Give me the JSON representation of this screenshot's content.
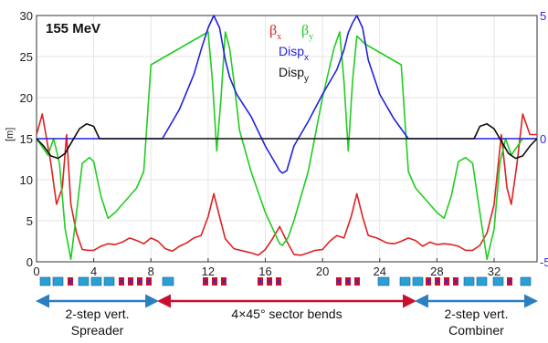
{
  "chart_data": {
    "type": "line",
    "title": "155 MeV",
    "ylabel": "[m]",
    "xlim": [
      0,
      35
    ],
    "ylim": [
      0,
      30
    ],
    "x_ticks": [
      "0",
      "4",
      "8",
      "12",
      "16",
      "20",
      "24",
      "28",
      "32"
    ],
    "y_ticks": [
      "0",
      "5",
      "10",
      "15",
      "20",
      "25",
      "30"
    ],
    "right_axis": {
      "ylim": [
        -5,
        5
      ],
      "ticks": [
        "-5",
        "0",
        "5"
      ],
      "color": "#2a2ae0"
    },
    "legend": {
      "beta_x": {
        "sym": "β",
        "sub": "x",
        "color": "#dd2222"
      },
      "beta_y": {
        "sym": "β",
        "sub": "y",
        "color": "#22cc22"
      },
      "disp_x": {
        "base": "Disp",
        "sub": "x",
        "color": "#2222dd"
      },
      "disp_y": {
        "base": "Disp",
        "sub": "y",
        "color": "#111111"
      }
    },
    "series": [
      {
        "key": "beta_x",
        "color": "#dd2222",
        "axis": "left",
        "x": [
          0,
          0.4,
          1,
          1.4,
          1.8,
          2.1,
          2.4,
          2.8,
          3.2,
          3.6,
          4,
          4.5,
          5,
          5.5,
          6,
          6.5,
          7,
          7.5,
          8,
          8.5,
          9,
          9.5,
          10,
          10.5,
          11,
          11.5,
          12,
          12.4,
          12.8,
          13.2,
          13.8,
          14.5,
          15,
          15.5,
          16,
          16.5,
          17,
          17.5,
          18,
          18.5,
          19,
          19.5,
          20,
          20.5,
          21,
          21.5,
          22,
          22.4,
          22.8,
          23.2,
          23.8,
          24.5,
          25,
          25.5,
          26,
          26.5,
          27,
          27.5,
          28,
          28.5,
          29,
          29.5,
          30,
          30.5,
          31,
          31.5,
          32,
          32.5,
          32.9,
          33.2,
          33.6,
          34,
          34.5,
          35
        ],
        "y": [
          15.5,
          18,
          12,
          7,
          9,
          15.5,
          7,
          3.5,
          1.5,
          1.4,
          1.4,
          1.9,
          2.2,
          2.1,
          2.4,
          2.9,
          2.6,
          2.2,
          2.9,
          2.5,
          1.6,
          1.3,
          1.9,
          2.3,
          2.9,
          3.2,
          5.5,
          8.3,
          5.5,
          2.8,
          1.6,
          1.3,
          1.1,
          0.8,
          1.5,
          2.8,
          4.3,
          2.5,
          0.9,
          0.8,
          1.1,
          1.4,
          1.5,
          2.5,
          3.2,
          2.9,
          5.5,
          8.3,
          5.5,
          3.2,
          2.9,
          2.3,
          2.2,
          2.5,
          2.9,
          2.6,
          1.9,
          2.4,
          2.1,
          2.2,
          2.1,
          1.9,
          1.4,
          1.4,
          2,
          3.5,
          7,
          15.5,
          9,
          7,
          12,
          18,
          15.5,
          15.5
        ]
      },
      {
        "key": "beta_y",
        "color": "#22cc22",
        "axis": "left",
        "x": [
          0,
          0.4,
          0.8,
          1.2,
          1.6,
          2,
          2.4,
          2.8,
          3.2,
          3.7,
          4,
          4.5,
          5,
          5.5,
          6,
          6.5,
          7,
          7.5,
          8,
          8.5,
          9,
          9.5,
          10,
          10.5,
          11,
          11.5,
          12,
          12.3,
          12.6,
          12.9,
          13.2,
          13.5,
          13.8,
          14.2,
          15,
          16,
          17,
          17.2,
          17.6,
          18,
          19,
          20,
          20.8,
          21.2,
          21.5,
          21.8,
          22.1,
          22.4,
          22.7,
          23,
          23.5,
          24,
          24.5,
          25,
          25.5,
          26,
          26.5,
          27,
          27.5,
          28,
          28.5,
          29,
          29.5,
          30,
          30.5,
          31,
          31.5,
          32,
          32.4,
          32.8,
          33.2,
          33.6,
          34,
          34.5,
          35
        ],
        "y": [
          15,
          14,
          13,
          15,
          12,
          4,
          0.3,
          6,
          12,
          12.7,
          12.2,
          8,
          5.3,
          6,
          7,
          8,
          9,
          11,
          24,
          24.5,
          25,
          25.5,
          26,
          26.5,
          27,
          27.5,
          28,
          22,
          13.5,
          20,
          28,
          26,
          22,
          16,
          11,
          6,
          2.2,
          2,
          3,
          5,
          11,
          20,
          26,
          28,
          22,
          13.5,
          22,
          27.5,
          27,
          26.5,
          26,
          25.5,
          25,
          24.5,
          24,
          11,
          9,
          8,
          7,
          6,
          5.3,
          8,
          12.2,
          12.7,
          12,
          6,
          0.3,
          4,
          12,
          15,
          13,
          14,
          15,
          15,
          15
        ]
      },
      {
        "key": "disp_x",
        "color": "#2222dd",
        "axis": "right",
        "x": [
          0,
          2,
          2.3,
          2.6,
          3,
          4,
          8,
          8.8,
          10,
          11,
          11.5,
          12,
          12.4,
          12.8,
          13.2,
          13.5,
          14,
          15,
          16,
          17,
          17.2,
          17.5,
          18,
          19,
          20,
          21,
          21.5,
          21.8,
          22.1,
          22.4,
          22.8,
          23.2,
          24,
          25,
          26,
          27,
          28,
          30,
          31,
          31.5,
          32,
          32.5,
          33,
          35
        ],
        "y": [
          0,
          0,
          0,
          0,
          0,
          0,
          0,
          0,
          1.2,
          2.6,
          3.6,
          4.5,
          5,
          4.5,
          3.2,
          2.5,
          1.8,
          0.9,
          -0.3,
          -1.3,
          -1.4,
          -1.3,
          -0.3,
          0.7,
          1.8,
          2.8,
          3.6,
          4.3,
          4.7,
          5,
          4.5,
          3.2,
          1.8,
          0.8,
          0,
          0,
          0,
          0,
          0,
          0,
          0,
          0,
          0,
          0
        ]
      },
      {
        "key": "disp_y",
        "color": "#111111",
        "axis": "right",
        "x": [
          0,
          0.5,
          1,
          1.5,
          2,
          2.5,
          3,
          3.5,
          4,
          4.4,
          5,
          10,
          15,
          20,
          25,
          30,
          30.6,
          31,
          31.5,
          32,
          32.5,
          33,
          33.5,
          34,
          34.5,
          35
        ],
        "y": [
          0,
          -0.3,
          -0.7,
          -0.8,
          -0.6,
          -0.1,
          0.4,
          0.6,
          0.5,
          0,
          0,
          0,
          0,
          0,
          0,
          0,
          0,
          0.5,
          0.6,
          0.4,
          -0.1,
          -0.6,
          -0.8,
          -0.7,
          -0.3,
          0
        ]
      }
    ],
    "sections": [
      {
        "label_lines": [
          "2-step vert.",
          "Spreader"
        ],
        "x_from": 0,
        "x_to": 8.5,
        "color": "#2b7fc1"
      },
      {
        "label_lines": [
          "4×45° sector bends"
        ],
        "x_from": 8.5,
        "x_to": 26.5,
        "color": "#c8102e"
      },
      {
        "label_lines": [
          "2-step vert.",
          "Combiner"
        ],
        "x_from": 26.5,
        "x_to": 35,
        "color": "#2b7fc1"
      }
    ],
    "magnet_colors": {
      "dipole": "#2a9fd6",
      "quad": "#c8102e",
      "quad_core": "#2a2ae0"
    }
  }
}
